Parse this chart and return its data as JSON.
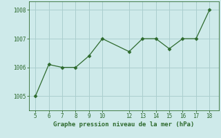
{
  "x": [
    5,
    6,
    7,
    8,
    9,
    10,
    12,
    13,
    14,
    15,
    16,
    17,
    18
  ],
  "y": [
    1005.0,
    1006.1,
    1006.0,
    1006.0,
    1006.4,
    1007.0,
    1006.55,
    1007.0,
    1007.0,
    1006.65,
    1007.0,
    1007.0,
    1008.0
  ],
  "line_color": "#2d6a2d",
  "marker": "D",
  "marker_size": 2.5,
  "bg_color": "#ceeaea",
  "grid_color": "#aacece",
  "xlabel": "Graphe pression niveau de la mer (hPa)",
  "xlabel_color": "#2d6a2d",
  "tick_color": "#2d6a2d",
  "ylim": [
    1004.5,
    1008.3
  ],
  "yticks": [
    1005,
    1006,
    1007,
    1008
  ],
  "xticks": [
    5,
    6,
    7,
    8,
    9,
    10,
    12,
    13,
    14,
    15,
    16,
    17,
    18
  ],
  "xlim": [
    4.5,
    18.7
  ],
  "tick_fontsize": 5.5,
  "xlabel_fontsize": 6.5,
  "linewidth": 0.9
}
